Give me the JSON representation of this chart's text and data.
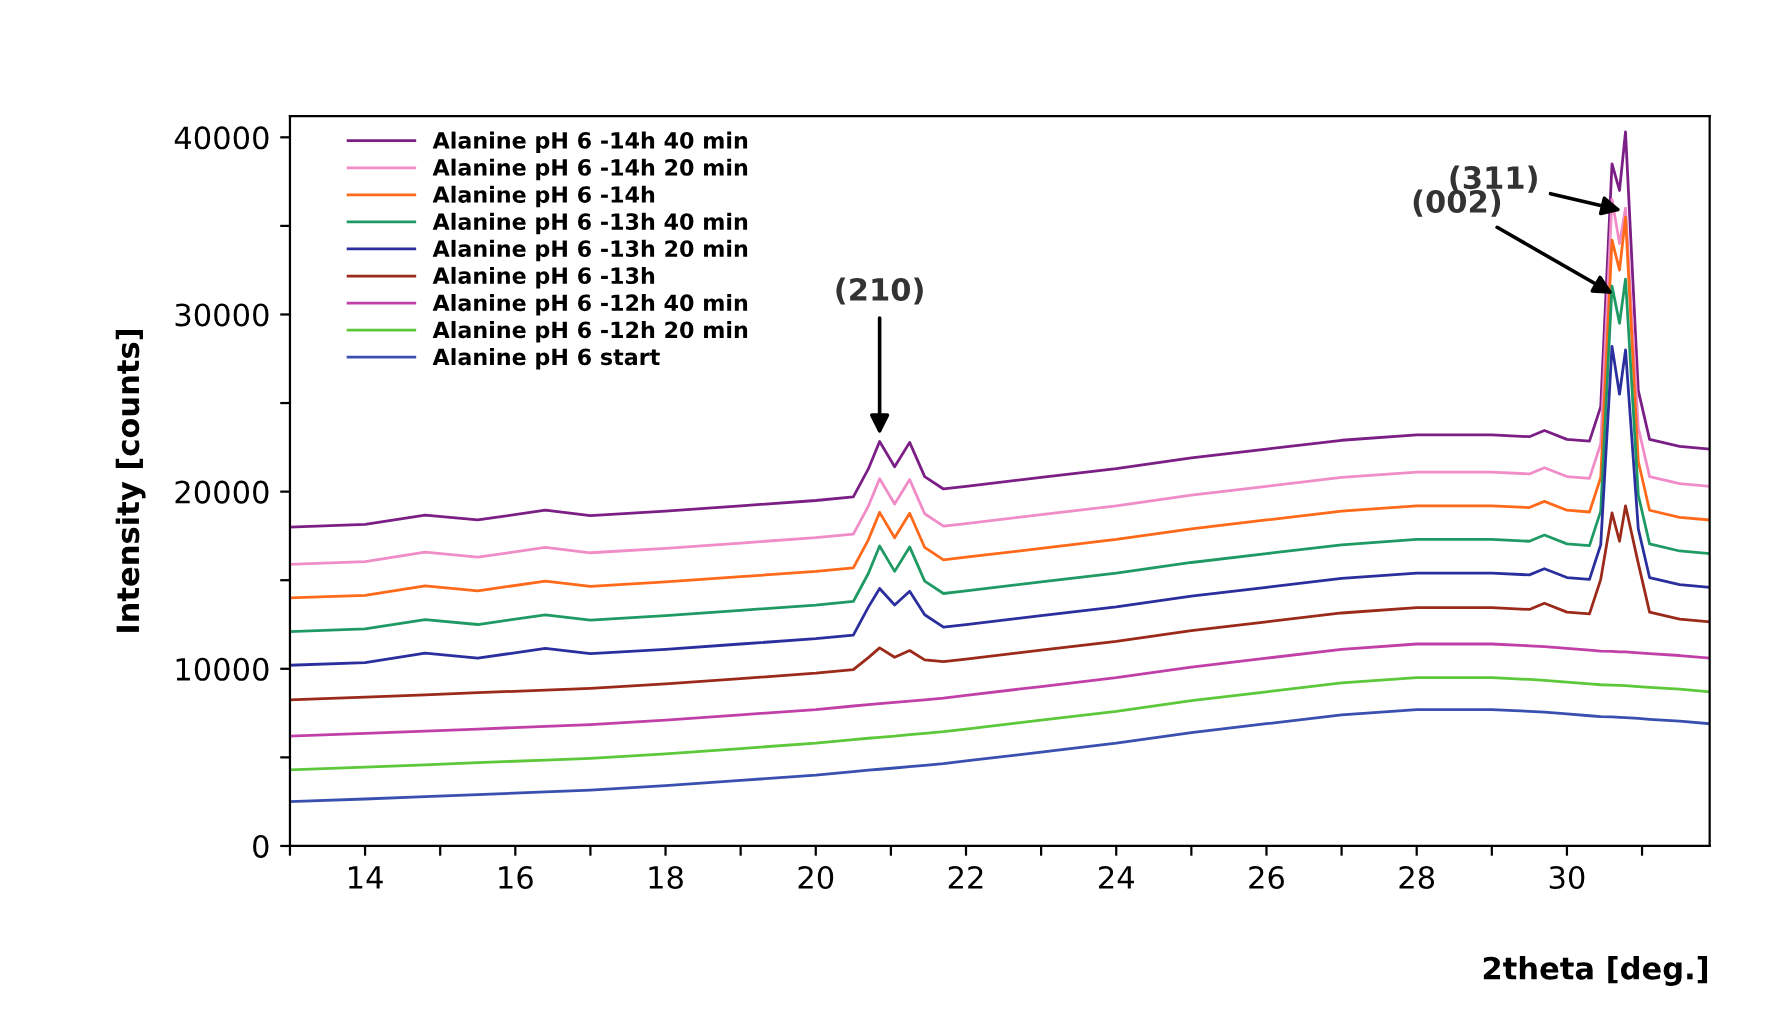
{
  "chart_data": {
    "type": "line",
    "xlabel": "2theta [deg.]",
    "ylabel": "Intensity [counts]",
    "x": [
      13,
      14,
      14.8,
      15.5,
      16.4,
      17,
      18,
      19,
      20,
      20.5,
      20.7,
      20.85,
      21.05,
      21.25,
      21.45,
      21.7,
      22,
      23,
      24,
      25,
      26,
      27,
      28,
      29,
      29.5,
      29.7,
      30,
      30.3,
      30.45,
      30.6,
      30.7,
      30.78,
      30.95,
      31.1,
      31.5,
      31.9
    ],
    "series": [
      {
        "name": "Alanine pH 6 -14h 40 min",
        "color": "#7b1f86",
        "values": [
          18000,
          18150,
          18680,
          18400,
          18950,
          18650,
          18900,
          19200,
          19500,
          19700,
          21280,
          22830,
          21400,
          22780,
          20850,
          20150,
          20300,
          20800,
          21300,
          21900,
          22400,
          22900,
          23200,
          23200,
          23100,
          23450,
          22950,
          22850,
          24800,
          38500,
          37000,
          40300,
          25700,
          22950,
          22550,
          22400
        ]
      },
      {
        "name": "Alanine pH 6 -14h 20 min",
        "color": "#f08cc8",
        "values": [
          15900,
          16050,
          16580,
          16300,
          16850,
          16550,
          16800,
          17100,
          17400,
          17600,
          19180,
          20730,
          19300,
          20680,
          18750,
          18050,
          18200,
          18700,
          19200,
          19800,
          20300,
          20800,
          21100,
          21100,
          21000,
          21350,
          20850,
          20750,
          22700,
          36500,
          34000,
          36000,
          23600,
          20850,
          20450,
          20300
        ]
      },
      {
        "name": "Alanine pH 6 -14h",
        "color": "#ff6a1a",
        "values": [
          14000,
          14150,
          14680,
          14400,
          14950,
          14650,
          14900,
          15200,
          15500,
          15700,
          17280,
          18830,
          17400,
          18780,
          16850,
          16150,
          16300,
          16800,
          17300,
          17900,
          18400,
          18900,
          19200,
          19200,
          19100,
          19450,
          18950,
          18850,
          20800,
          34200,
          32500,
          35500,
          21700,
          18950,
          18550,
          18400
        ]
      },
      {
        "name": "Alanine pH 6 -13h 40 min",
        "color": "#1f9a64",
        "values": [
          12100,
          12250,
          12780,
          12500,
          13050,
          12750,
          13000,
          13300,
          13600,
          13800,
          15380,
          16930,
          15500,
          16880,
          14950,
          14250,
          14400,
          14900,
          15400,
          16000,
          16500,
          17000,
          17300,
          17300,
          17200,
          17550,
          17050,
          16950,
          18900,
          31600,
          29500,
          32000,
          19800,
          17050,
          16650,
          16500
        ]
      },
      {
        "name": "Alanine pH 6 -13h 20 min",
        "color": "#2b2f9e",
        "values": [
          10200,
          10350,
          10880,
          10600,
          11150,
          10850,
          11100,
          11400,
          11700,
          11900,
          13480,
          14530,
          13600,
          14380,
          13050,
          12350,
          12500,
          13000,
          13500,
          14100,
          14600,
          15100,
          15400,
          15400,
          15300,
          15650,
          15150,
          15050,
          17000,
          28200,
          25500,
          28000,
          17900,
          15150,
          14750,
          14600
        ]
      },
      {
        "name": "Alanine pH 6 -13h",
        "color": "#9b2a1a",
        "values": [
          8250,
          8400,
          8530,
          8650,
          8800,
          8900,
          9150,
          9450,
          9750,
          9950,
          10630,
          11180,
          10650,
          11030,
          10500,
          10400,
          10550,
          11050,
          11550,
          12150,
          12650,
          13150,
          13450,
          13450,
          13350,
          13700,
          13200,
          13100,
          15050,
          18800,
          17200,
          19200,
          15950,
          13200,
          12800,
          12650
        ]
      },
      {
        "name": "Alanine pH 6 -12h 40 min",
        "color": "#c040a8",
        "values": [
          6200,
          6350,
          6480,
          6600,
          6750,
          6850,
          7100,
          7400,
          7700,
          7900,
          7980,
          8030,
          8100,
          8180,
          8250,
          8350,
          8500,
          9000,
          9500,
          10100,
          10600,
          11100,
          11400,
          11400,
          11300,
          11250,
          11150,
          11050,
          11000,
          10980,
          10960,
          10950,
          10900,
          10850,
          10750,
          10600
        ]
      },
      {
        "name": "Alanine pH 6 -12h 20 min",
        "color": "#5cc83a",
        "values": [
          4300,
          4450,
          4580,
          4700,
          4850,
          4950,
          5200,
          5500,
          5800,
          6000,
          6080,
          6130,
          6200,
          6280,
          6350,
          6450,
          6600,
          7100,
          7600,
          8200,
          8700,
          9200,
          9500,
          9500,
          9400,
          9350,
          9250,
          9150,
          9100,
          9080,
          9060,
          9050,
          9000,
          8950,
          8850,
          8700
        ]
      },
      {
        "name": "Alanine pH 6 start",
        "color": "#3a50b0",
        "values": [
          2500,
          2650,
          2780,
          2900,
          3050,
          3150,
          3400,
          3700,
          4000,
          4200,
          4280,
          4330,
          4400,
          4480,
          4550,
          4650,
          4800,
          5300,
          5800,
          6400,
          6900,
          7400,
          7700,
          7700,
          7600,
          7550,
          7450,
          7350,
          7300,
          7280,
          7260,
          7250,
          7200,
          7150,
          7050,
          6900
        ]
      }
    ],
    "xlim": [
      13,
      31.9
    ],
    "xticks": [
      {
        "value": 13,
        "label": null
      },
      14,
      {
        "value": 15,
        "label": null
      },
      16,
      {
        "value": 17,
        "label": null
      },
      18,
      {
        "value": 19,
        "label": null
      },
      20,
      {
        "value": 21,
        "label": null
      },
      22,
      {
        "value": 23,
        "label": null
      },
      24,
      {
        "value": 25,
        "label": null
      },
      26,
      {
        "value": 27,
        "label": null
      },
      28,
      {
        "value": 29,
        "label": null
      },
      30,
      {
        "value": 31,
        "label": null
      }
    ],
    "ylim": [
      0,
      41200
    ],
    "yticks": [
      0,
      {
        "value": 5000,
        "label": null
      },
      10000,
      {
        "value": 15000,
        "label": null
      },
      20000,
      {
        "value": 25000,
        "label": null
      },
      30000,
      {
        "value": 35000,
        "label": null
      },
      40000
    ],
    "annotations": [
      {
        "text": "(210)",
        "x": 20.85,
        "y": 22900
      },
      {
        "text": "(311)",
        "x": 30.8,
        "y": 35800
      },
      {
        "text": "(002)",
        "x": 30.68,
        "y": 31000
      }
    ],
    "grid": false,
    "legend": "top left",
    "marker": "none",
    "line_style": "solid"
  }
}
